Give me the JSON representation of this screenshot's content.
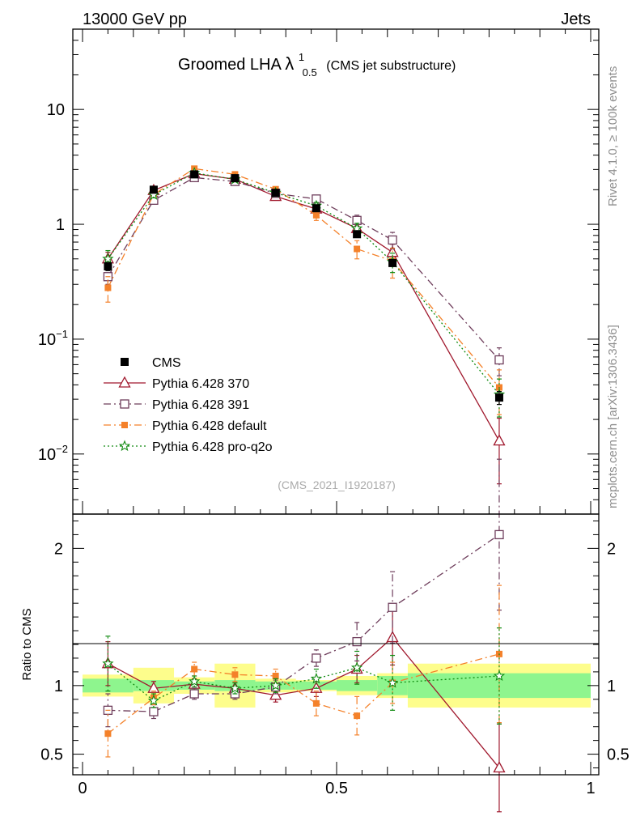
{
  "header": {
    "left": "13000 GeV pp",
    "right": "Jets"
  },
  "side_labels": {
    "rivet": "Rivet 4.1.0, ≥ 100k events",
    "mcplots": "mcplots.cern.ch [arXiv:1306.3436]"
  },
  "colors": {
    "cms": "#000000",
    "p370": "#a0182d",
    "p391": "#6e3d5b",
    "pdefault": "#f4812a",
    "pq2o": "#108a10",
    "band_inner": "#8ef58e",
    "band_outer": "#fdfd8c",
    "watermark": "#aaaaaa"
  },
  "chart_data": {
    "type": "line",
    "title": "Groomed LHA",
    "title_symbol": "λ",
    "title_sup": "1",
    "title_sub": "0.5",
    "title_suffix": "(CMS jet substructure)",
    "analysis_id": "(CMS_2021_I1920187)",
    "xlim": [
      0,
      1
    ],
    "ylim_main": [
      0.003,
      50
    ],
    "ylim_ratio": [
      0.35,
      2.25
    ],
    "yscale_main": "log",
    "ylabel_ratio": "Ratio to CMS",
    "main_ticks": [
      {
        "label": "10",
        "value": 10,
        "sup": ""
      },
      {
        "label": "1",
        "value": 1,
        "sup": ""
      },
      {
        "label": "10",
        "value": 0.1,
        "sup": "−1"
      },
      {
        "label": "10",
        "value": 0.01,
        "sup": "−2"
      }
    ],
    "ratio_ticks": [
      {
        "label": "2",
        "value": 2
      },
      {
        "label": "1",
        "value": 1
      },
      {
        "label": "0.5",
        "value": 0.5
      }
    ],
    "x_ticks": [
      {
        "label": "0",
        "value": 0
      },
      {
        "label": "0.5",
        "value": 0.5
      },
      {
        "label": "1",
        "value": 1
      }
    ],
    "legend_position": "lower-left",
    "bins": [
      {
        "lo": 0.0,
        "hi": 0.1
      },
      {
        "lo": 0.1,
        "hi": 0.18
      },
      {
        "lo": 0.18,
        "hi": 0.26
      },
      {
        "lo": 0.26,
        "hi": 0.34
      },
      {
        "lo": 0.34,
        "hi": 0.42
      },
      {
        "lo": 0.42,
        "hi": 0.5
      },
      {
        "lo": 0.5,
        "hi": 0.58
      },
      {
        "lo": 0.58,
        "hi": 0.64
      },
      {
        "lo": 0.64,
        "hi": 1.0
      }
    ],
    "band_inner": [
      0.05,
      0.04,
      0.03,
      0.04,
      0.03,
      0.03,
      0.04,
      0.07,
      0.09
    ],
    "band_outer": [
      0.08,
      0.13,
      0.06,
      0.16,
      0.05,
      0.04,
      0.07,
      0.09,
      0.16
    ],
    "x": [
      0.05,
      0.14,
      0.22,
      0.3,
      0.38,
      0.46,
      0.54,
      0.61,
      0.82
    ],
    "series": [
      {
        "name": "CMS",
        "key": "cms",
        "style": "data",
        "values": [
          0.43,
          2.0,
          2.72,
          2.52,
          1.88,
          1.38,
          0.82,
          0.46,
          0.031
        ],
        "err": [
          0.035,
          0.12,
          0.1,
          0.1,
          0.07,
          0.07,
          0.04,
          0.03,
          0.004
        ],
        "ratio": [
          1,
          1,
          1,
          1,
          1,
          1,
          1,
          1,
          1
        ],
        "ratio_err": [
          0,
          0,
          0,
          0,
          0,
          0,
          0,
          0,
          0
        ]
      },
      {
        "name": "Pythia 6.428 370",
        "key": "p370",
        "style": "solid",
        "marker": "triangle",
        "values": [
          0.5,
          1.97,
          2.76,
          2.47,
          1.75,
          1.36,
          0.92,
          0.57,
          0.013
        ],
        "err": [
          0.07,
          0.08,
          0.08,
          0.08,
          0.07,
          0.07,
          0.08,
          0.1,
          0.0075
        ],
        "ratio": [
          1.16,
          0.98,
          1.01,
          0.98,
          0.93,
          0.98,
          1.12,
          1.35,
          0.4
        ],
        "ratio_err": [
          0.16,
          0.05,
          0.04,
          0.04,
          0.05,
          0.06,
          0.1,
          0.2,
          0.32
        ]
      },
      {
        "name": "Pythia 6.428 391",
        "key": "p391",
        "style": "dashdot",
        "marker": "open-square",
        "values": [
          0.35,
          1.62,
          2.55,
          2.36,
          1.86,
          1.66,
          1.08,
          0.73,
          0.066
        ],
        "err": [
          0.05,
          0.07,
          0.07,
          0.07,
          0.07,
          0.08,
          0.12,
          0.12,
          0.018
        ],
        "ratio": [
          0.82,
          0.81,
          0.94,
          0.94,
          0.99,
          1.2,
          1.32,
          1.57,
          2.1
        ],
        "ratio_err": [
          0.12,
          0.05,
          0.04,
          0.04,
          0.05,
          0.06,
          0.14,
          0.26,
          0.55
        ]
      },
      {
        "name": "Pythia 6.428 default",
        "key": "pdefault",
        "style": "dashdot",
        "marker": "square",
        "values": [
          0.28,
          1.82,
          3.05,
          2.72,
          2.02,
          1.2,
          0.61,
          0.48,
          0.038
        ],
        "err": [
          0.07,
          0.1,
          0.1,
          0.1,
          0.08,
          0.12,
          0.11,
          0.14,
          0.016
        ],
        "ratio": [
          0.65,
          0.91,
          1.12,
          1.08,
          1.07,
          0.87,
          0.78,
          1.02,
          1.23
        ],
        "ratio_err": [
          0.17,
          0.05,
          0.05,
          0.05,
          0.05,
          0.09,
          0.14,
          0.15,
          0.5
        ]
      },
      {
        "name": "Pythia 6.428 pro-q2o",
        "key": "pq2o",
        "style": "dotted",
        "marker": "star",
        "values": [
          0.5,
          1.8,
          2.8,
          2.46,
          1.88,
          1.45,
          0.92,
          0.47,
          0.033
        ],
        "err": [
          0.09,
          0.1,
          0.1,
          0.1,
          0.08,
          0.1,
          0.1,
          0.09,
          0.012
        ],
        "ratio": [
          1.16,
          0.89,
          1.03,
          0.98,
          1.0,
          1.05,
          1.13,
          1.02,
          1.07
        ],
        "ratio_err": [
          0.2,
          0.05,
          0.04,
          0.04,
          0.05,
          0.07,
          0.12,
          0.2,
          0.35
        ]
      }
    ]
  }
}
